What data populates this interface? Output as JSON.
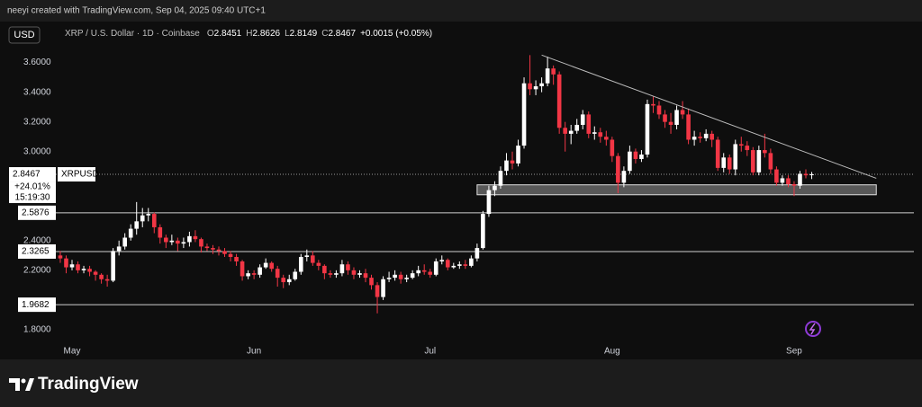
{
  "header": {
    "credit": "neeyi created with TradingView.com, Sep 04, 2025 09:40 UTC+1"
  },
  "toolbar": {
    "currency": "USD",
    "symbol": "XRP / U.S. Dollar · 1D · Coinbase",
    "ohlc": [
      {
        "label": "O",
        "value": "2.8451"
      },
      {
        "label": "H",
        "value": "2.8626"
      },
      {
        "label": "L",
        "value": "2.8149"
      },
      {
        "label": "C",
        "value": "2.8467"
      }
    ],
    "change": "+0.0015 (+0.05%)"
  },
  "chart_data": {
    "type": "candlestick",
    "categories": [
      null,
      null,
      "May",
      null,
      null,
      null,
      null,
      null,
      null,
      null,
      null,
      null,
      null,
      null,
      null,
      null,
      null,
      null,
      null,
      null,
      null,
      null,
      null,
      null,
      null,
      null,
      null,
      null,
      null,
      null,
      null,
      null,
      null,
      "Jun",
      null,
      null,
      null,
      null,
      null,
      null,
      null,
      null,
      null,
      null,
      null,
      null,
      null,
      null,
      null,
      null,
      null,
      null,
      null,
      null,
      null,
      null,
      null,
      null,
      null,
      null,
      null,
      null,
      null,
      "Jul",
      null,
      null,
      null,
      null,
      null,
      null,
      null,
      null,
      null,
      null,
      null,
      null,
      null,
      null,
      null,
      null,
      null,
      null,
      null,
      null,
      null,
      null,
      null,
      null,
      null,
      null,
      null,
      null,
      null,
      null,
      "Aug",
      null,
      null,
      null,
      null,
      null,
      null,
      null,
      null,
      null,
      null,
      null,
      null,
      null,
      null,
      null,
      null,
      null,
      null,
      null,
      null,
      null,
      null,
      null,
      null,
      null,
      null,
      null,
      null,
      null,
      null,
      "Sep",
      null,
      null,
      null
    ],
    "open": [
      2.3,
      2.28,
      2.22,
      2.24,
      2.2,
      2.21,
      2.19,
      2.17,
      2.14,
      2.13,
      2.33,
      2.36,
      2.42,
      2.48,
      2.53,
      2.57,
      2.58,
      2.49,
      2.42,
      2.39,
      2.4,
      2.38,
      2.39,
      2.43,
      2.41,
      2.36,
      2.35,
      2.34,
      2.33,
      2.31,
      2.29,
      2.26,
      2.16,
      2.18,
      2.17,
      2.22,
      2.25,
      2.21,
      2.15,
      2.12,
      2.14,
      2.19,
      2.29,
      2.3,
      2.25,
      2.23,
      2.18,
      2.17,
      2.18,
      2.24,
      2.2,
      2.17,
      2.18,
      2.15,
      2.1,
      2.02,
      2.14,
      2.15,
      2.17,
      2.14,
      2.15,
      2.18,
      2.2,
      2.19,
      2.17,
      2.26,
      2.27,
      2.22,
      2.23,
      2.24,
      2.23,
      2.28,
      2.35,
      2.58,
      2.74,
      2.77,
      2.87,
      2.94,
      2.92,
      3.04,
      3.46,
      3.42,
      3.44,
      3.46,
      3.56,
      3.52,
      3.16,
      3.12,
      3.14,
      3.18,
      3.25,
      3.12,
      3.13,
      3.1,
      3.08,
      2.97,
      2.79,
      2.87,
      3.0,
      2.95,
      2.98,
      3.32,
      3.31,
      3.25,
      3.2,
      3.18,
      3.28,
      3.25,
      3.08,
      3.1,
      3.09,
      3.12,
      3.08,
      2.89,
      2.96,
      2.88,
      3.05,
      3.04,
      3.01,
      2.86,
      3.01,
      2.99,
      2.88,
      2.79,
      2.82,
      2.78,
      2.77,
      2.85,
      2.8451
    ],
    "high": [
      2.33,
      2.3,
      2.27,
      2.26,
      2.23,
      2.23,
      2.2,
      2.18,
      2.17,
      2.35,
      2.4,
      2.45,
      2.51,
      2.66,
      2.62,
      2.62,
      2.59,
      2.51,
      2.44,
      2.44,
      2.42,
      2.42,
      2.46,
      2.47,
      2.42,
      2.38,
      2.37,
      2.36,
      2.35,
      2.33,
      2.31,
      2.27,
      2.2,
      2.2,
      2.24,
      2.28,
      2.26,
      2.23,
      2.17,
      2.17,
      2.21,
      2.31,
      2.34,
      2.33,
      2.27,
      2.24,
      2.2,
      2.2,
      2.27,
      2.26,
      2.22,
      2.2,
      2.21,
      2.17,
      2.12,
      2.16,
      2.19,
      2.2,
      2.19,
      2.17,
      2.2,
      2.23,
      2.24,
      2.21,
      2.28,
      2.3,
      2.28,
      2.25,
      2.26,
      2.27,
      2.3,
      2.38,
      2.6,
      2.77,
      2.8,
      2.9,
      2.99,
      3.0,
      3.08,
      3.5,
      3.65,
      3.48,
      3.5,
      3.64,
      3.58,
      3.54,
      3.2,
      3.18,
      3.22,
      3.28,
      3.27,
      3.17,
      3.16,
      3.14,
      3.1,
      2.99,
      2.9,
      3.04,
      3.02,
      3.01,
      3.35,
      3.37,
      3.34,
      3.28,
      3.26,
      3.31,
      3.34,
      3.29,
      3.14,
      3.13,
      3.15,
      3.14,
      3.1,
      2.99,
      2.98,
      3.08,
      3.1,
      3.07,
      3.03,
      3.04,
      3.12,
      3.02,
      2.9,
      2.84,
      2.84,
      2.8,
      2.87,
      2.88,
      2.8626
    ],
    "low": [
      2.25,
      2.18,
      2.2,
      2.18,
      2.18,
      2.16,
      2.13,
      2.11,
      2.09,
      2.12,
      2.3,
      2.34,
      2.4,
      2.44,
      2.49,
      2.53,
      2.45,
      2.38,
      2.35,
      2.37,
      2.33,
      2.35,
      2.36,
      2.39,
      2.32,
      2.33,
      2.31,
      2.3,
      2.29,
      2.26,
      2.23,
      2.13,
      2.14,
      2.14,
      2.15,
      2.21,
      2.19,
      2.09,
      2.08,
      2.1,
      2.13,
      2.17,
      2.26,
      2.23,
      2.2,
      2.14,
      2.15,
      2.15,
      2.16,
      2.17,
      2.14,
      2.15,
      2.12,
      2.07,
      1.91,
      2.0,
      2.12,
      2.13,
      2.11,
      2.12,
      2.14,
      2.16,
      2.17,
      2.15,
      2.16,
      2.24,
      2.2,
      2.21,
      2.21,
      2.21,
      2.22,
      2.26,
      2.34,
      2.56,
      2.7,
      2.75,
      2.84,
      2.88,
      2.9,
      3.02,
      3.38,
      3.38,
      3.4,
      3.44,
      3.45,
      3.12,
      3.0,
      3.05,
      3.12,
      3.15,
      3.09,
      3.08,
      3.06,
      3.04,
      2.93,
      2.72,
      2.76,
      2.85,
      2.92,
      2.93,
      2.96,
      3.26,
      3.22,
      3.16,
      3.12,
      3.15,
      3.22,
      3.05,
      3.04,
      3.06,
      3.07,
      3.03,
      2.87,
      2.86,
      2.85,
      2.84,
      3.0,
      2.97,
      2.84,
      2.84,
      2.96,
      2.85,
      2.77,
      2.77,
      2.76,
      2.7,
      2.75,
      2.82,
      2.8149
    ],
    "close": [
      2.28,
      2.22,
      2.24,
      2.2,
      2.21,
      2.19,
      2.17,
      2.14,
      2.13,
      2.33,
      2.36,
      2.42,
      2.48,
      2.53,
      2.57,
      2.58,
      2.49,
      2.42,
      2.39,
      2.4,
      2.38,
      2.39,
      2.43,
      2.41,
      2.36,
      2.35,
      2.34,
      2.33,
      2.31,
      2.29,
      2.26,
      2.16,
      2.18,
      2.17,
      2.22,
      2.25,
      2.21,
      2.15,
      2.12,
      2.14,
      2.19,
      2.29,
      2.3,
      2.25,
      2.23,
      2.18,
      2.17,
      2.18,
      2.24,
      2.2,
      2.17,
      2.18,
      2.15,
      2.1,
      2.02,
      2.14,
      2.15,
      2.17,
      2.14,
      2.15,
      2.18,
      2.2,
      2.19,
      2.17,
      2.26,
      2.27,
      2.22,
      2.23,
      2.24,
      2.23,
      2.28,
      2.35,
      2.58,
      2.74,
      2.77,
      2.87,
      2.94,
      2.92,
      3.04,
      3.46,
      3.42,
      3.44,
      3.46,
      3.56,
      3.52,
      3.16,
      3.12,
      3.14,
      3.18,
      3.25,
      3.12,
      3.13,
      3.1,
      3.08,
      2.97,
      2.79,
      2.87,
      3.0,
      2.95,
      2.98,
      3.32,
      3.31,
      3.25,
      3.2,
      3.18,
      3.28,
      3.25,
      3.08,
      3.1,
      3.09,
      3.12,
      3.08,
      2.89,
      2.96,
      2.88,
      3.05,
      3.04,
      3.01,
      2.86,
      3.01,
      2.99,
      2.88,
      2.79,
      2.82,
      2.78,
      2.77,
      2.85,
      2.84,
      2.8467
    ],
    "up_color": "#ffffff",
    "down_color": "#f23645",
    "ylim": [
      1.63,
      3.87
    ],
    "yticks": [
      {
        "value": 3.6,
        "label": "3.6000"
      },
      {
        "value": 3.4,
        "label": "3.4000"
      },
      {
        "value": 3.2,
        "label": "3.2000"
      },
      {
        "value": 3.0,
        "label": "3.0000"
      },
      {
        "value": 2.4,
        "label": "2.4000"
      },
      {
        "value": 2.2,
        "label": "2.2000"
      },
      {
        "value": 1.8,
        "label": "1.8000"
      }
    ],
    "levels": [
      2.5876,
      2.3265,
      1.9682
    ],
    "last_price": {
      "value": 2.8467,
      "symbol": "XRPUSD",
      "change": "+24.01%",
      "countdown": "15:19:30"
    },
    "zone": {
      "x": [
        71,
        139
      ],
      "y": [
        2.709,
        2.776
      ]
    },
    "trendline": {
      "x": [
        82,
        139
      ],
      "y": [
        3.65,
        2.82
      ]
    }
  },
  "footer": {
    "brand": "TradingView"
  }
}
